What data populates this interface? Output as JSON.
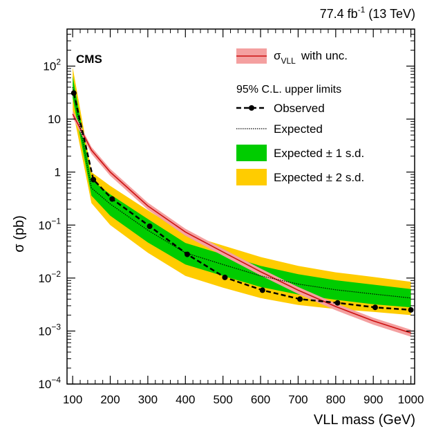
{
  "chart_data": {
    "type": "line",
    "xscale": "linear",
    "yscale": "log",
    "xlim": [
      85,
      1010
    ],
    "ylim": [
      0.0001,
      500
    ],
    "xlabel": "VLL mass (GeV)",
    "ylabel": "σ  (pb)",
    "x_ticks": [
      {
        "value": 100,
        "label": "100"
      },
      {
        "value": 200,
        "label": "200"
      },
      {
        "value": 300,
        "label": "300"
      },
      {
        "value": 400,
        "label": "400"
      },
      {
        "value": 500,
        "label": "500"
      },
      {
        "value": 600,
        "label": "600"
      },
      {
        "value": 700,
        "label": "700"
      },
      {
        "value": 800,
        "label": "800"
      },
      {
        "value": 900,
        "label": "900"
      },
      {
        "value": 1000,
        "label": "1000"
      }
    ],
    "y_ticks": [
      {
        "value": 0.0001,
        "base": "10",
        "exp": "−4"
      },
      {
        "value": 0.001,
        "base": "10",
        "exp": "−3"
      },
      {
        "value": 0.01,
        "base": "10",
        "exp": "−2"
      },
      {
        "value": 0.1,
        "base": "10",
        "exp": "−1"
      },
      {
        "value": 1,
        "base": "1",
        "exp": ""
      },
      {
        "value": 10,
        "base": "10",
        "exp": ""
      },
      {
        "value": 100,
        "base": "10",
        "exp": "2"
      }
    ],
    "series": [
      {
        "name": "σVLL with unc.",
        "color": "#cc1111",
        "band_color": "#f4a0a0",
        "x": [
          100,
          150,
          200,
          300,
          400,
          500,
          600,
          700,
          800,
          900,
          1000
        ],
        "y": [
          12.5,
          2.6,
          1.0,
          0.23,
          0.074,
          0.031,
          0.0132,
          0.0059,
          0.0029,
          0.00155,
          0.00092
        ],
        "band_frac": 0.15
      },
      {
        "name": "Observed",
        "color": "#000000",
        "x": [
          103,
          155,
          205,
          305,
          405,
          505,
          605,
          705,
          805,
          905,
          1000
        ],
        "y": [
          31,
          0.72,
          0.31,
          0.095,
          0.028,
          0.0103,
          0.0059,
          0.004,
          0.0034,
          0.0028,
          0.0025
        ]
      },
      {
        "name": "Expected",
        "color": "#000000",
        "x": [
          100,
          150,
          200,
          300,
          400,
          500,
          600,
          700,
          800,
          900,
          1000
        ],
        "y": [
          40,
          0.5,
          0.25,
          0.08,
          0.03,
          0.018,
          0.011,
          0.0077,
          0.006,
          0.005,
          0.0042
        ]
      }
    ],
    "bands": [
      {
        "name": "Expected ± 2 s.d.",
        "color": "#ffcc00",
        "x": [
          100,
          150,
          200,
          300,
          400,
          500,
          600,
          700,
          800,
          900,
          1000
        ],
        "lower": [
          15,
          0.26,
          0.1,
          0.03,
          0.011,
          0.0066,
          0.0042,
          0.0031,
          0.0026,
          0.0023,
          0.002
        ],
        "upper": [
          95,
          1.0,
          0.55,
          0.19,
          0.068,
          0.041,
          0.025,
          0.017,
          0.0128,
          0.0105,
          0.0085
        ]
      },
      {
        "name": "Expected ± 1 s.d.",
        "color": "#00cc00",
        "x": [
          100,
          150,
          200,
          300,
          400,
          500,
          600,
          700,
          800,
          900,
          1000
        ],
        "lower": [
          25,
          0.36,
          0.15,
          0.047,
          0.018,
          0.011,
          0.0068,
          0.0049,
          0.0039,
          0.0032,
          0.0028
        ],
        "upper": [
          65,
          0.72,
          0.38,
          0.13,
          0.046,
          0.028,
          0.017,
          0.0118,
          0.0091,
          0.0075,
          0.0062
        ]
      }
    ],
    "annotations": {
      "experiment": "CMS",
      "lumi": "77.4 fb",
      "lumi_exp": "-1",
      "energy": "(13 TeV)"
    },
    "legend": {
      "placement": "top-right",
      "theory_sigma": "σ",
      "theory_sub": "VLL",
      "theory_rest": "with unc.",
      "header": "95% C.L. upper limits",
      "observed": "Observed",
      "expected": "Expected",
      "one_sd": "Expected ± 1 s.d.",
      "two_sd": "Expected ± 2 s.d."
    }
  }
}
